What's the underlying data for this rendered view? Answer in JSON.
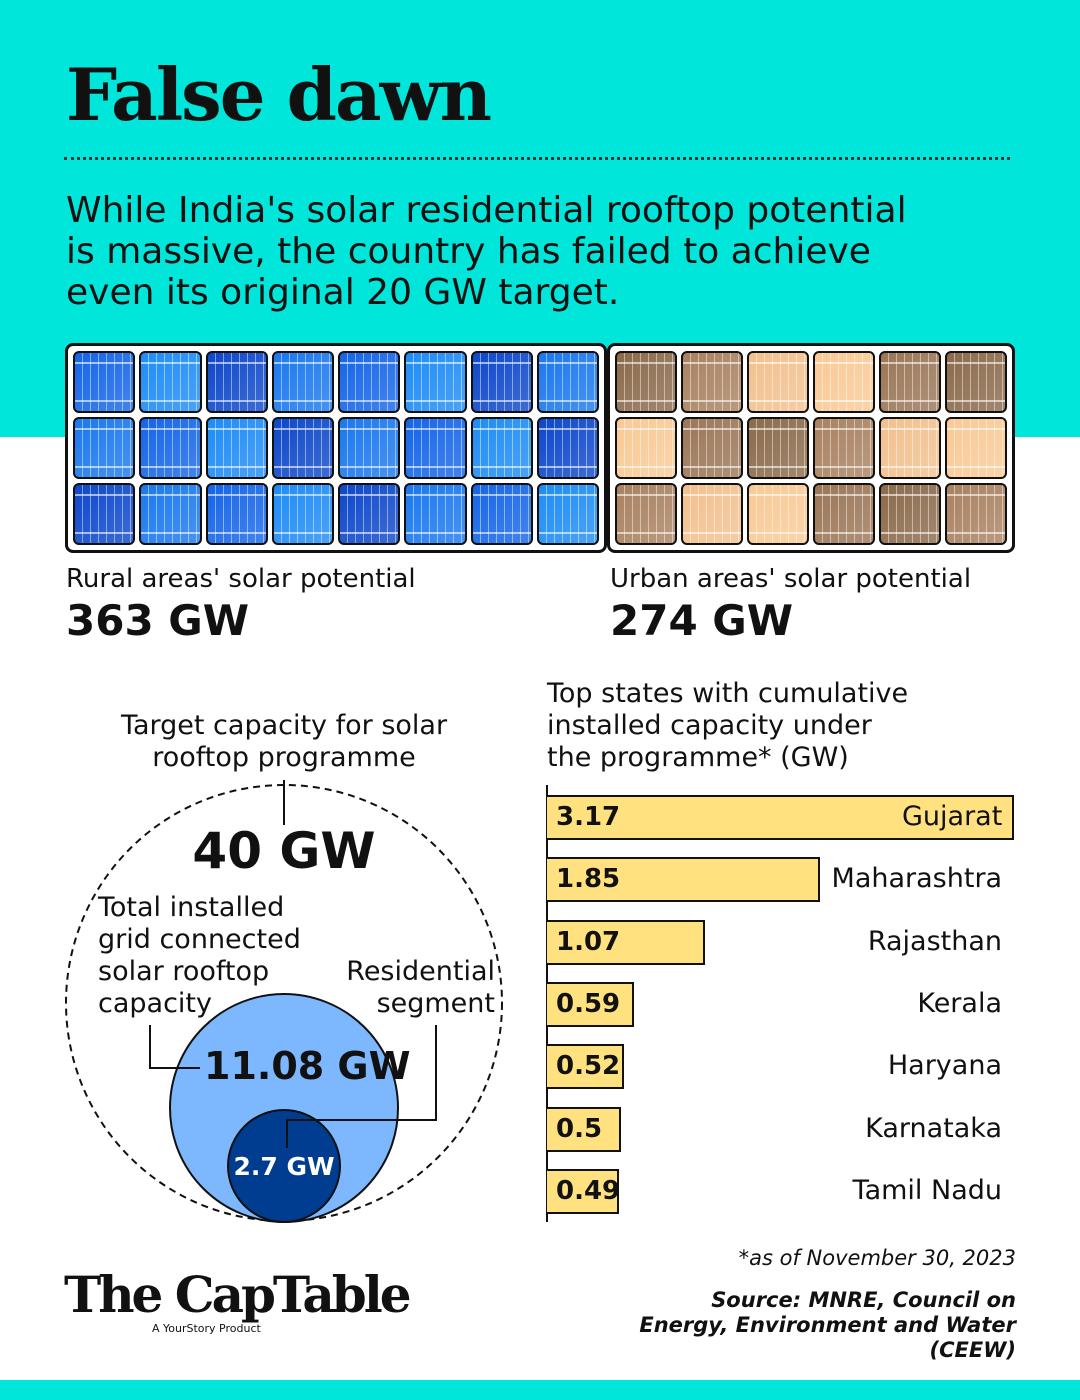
{
  "title": "False dawn",
  "subtitle": "While India's solar residential rooftop potential is massive, the country has failed to achieve even its original 20 GW target.",
  "rural": {
    "label": "Rural areas' solar potential",
    "value": "363 GW"
  },
  "urban": {
    "label": "Urban areas' solar potential",
    "value": "274 GW"
  },
  "circles": {
    "target_label": "Target capacity for solar rooftop programme",
    "target_value": "40 GW",
    "installed_label": "Total installed grid connected solar rooftop capacity",
    "installed_value": "11.08 GW",
    "residential_label": "Residential segment",
    "residential_value": "2.7 GW"
  },
  "chart_data": {
    "type": "bar",
    "orientation": "horizontal",
    "title": "Top states with cumulative installed capacity under the programme* (GW)",
    "categories": [
      "Gujarat",
      "Maharashtra",
      "Rajasthan",
      "Kerala",
      "Haryana",
      "Karnataka",
      "Tamil Nadu"
    ],
    "values": [
      3.17,
      1.85,
      1.07,
      0.59,
      0.52,
      0.5,
      0.49
    ],
    "value_labels": [
      "3.17",
      "1.85",
      "1.07",
      "0.59",
      "0.52",
      "0.5",
      "0.49"
    ],
    "xlim": [
      0,
      3.17
    ]
  },
  "footnote": "*as of November 30, 2023",
  "source": "Source: MNRE, Council on Energy, Environment and Water (CEEW)",
  "logo": {
    "name": "The CapTable",
    "tagline": "A YourStory Product"
  },
  "colors": {
    "teal": "#00E6DA",
    "bar": "#FFE17F",
    "light_blue": "#7DB8FF",
    "dark_blue": "#003C8F"
  }
}
